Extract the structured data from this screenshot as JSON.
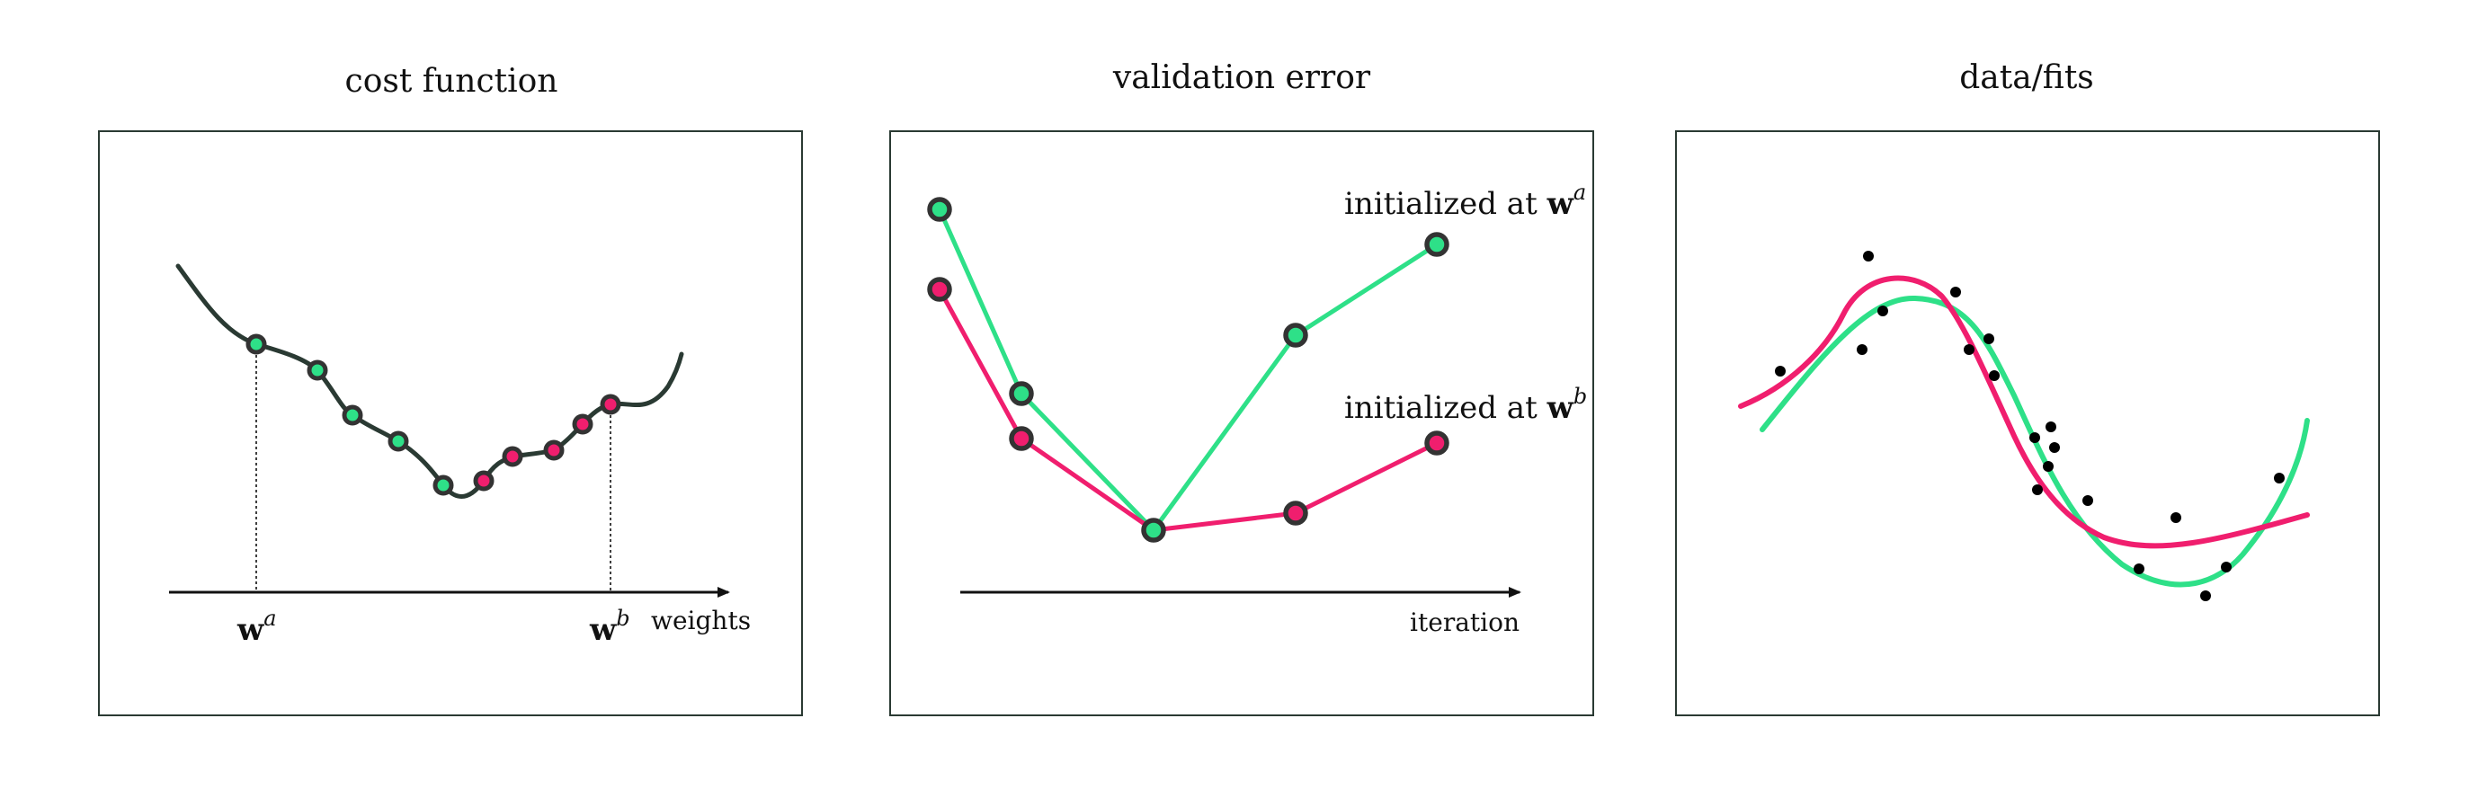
{
  "colors": {
    "green": "#2ee088",
    "pink": "#f01e6e",
    "curve": "#2a3a33",
    "frame": "#2a3a33",
    "dot_edge": "#333333",
    "point": "#000000"
  },
  "panels": {
    "cost": {
      "title": "cost function",
      "axis_label": "weights",
      "tick_a": {
        "base": "w",
        "sup": "a"
      },
      "tick_b": {
        "base": "w",
        "sup": "b"
      }
    },
    "validation": {
      "title": "validation error",
      "axis_label": "iteration",
      "label_a": {
        "text": "initialized at ",
        "base": "w",
        "sup": "a"
      },
      "label_b": {
        "text": "initialized at ",
        "base": "w",
        "sup": "b"
      }
    },
    "fits": {
      "title": "data/fits"
    }
  }
}
